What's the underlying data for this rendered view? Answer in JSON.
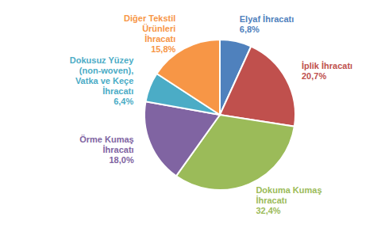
{
  "chart_data": {
    "type": "pie",
    "categories": [
      "Elyaf İhracatı",
      "İplik İhracatı",
      "Dokuma Kumaş İhracatı",
      "Örme Kumaş İhracatı",
      "Dokusuz Yüzey (non-woven), Vatka ve Keçe İhracatı",
      "Diğer Tekstil Ürünleri İhracatı"
    ],
    "values": [
      6.8,
      20.7,
      32.4,
      18.0,
      6.4,
      15.8
    ],
    "value_labels": [
      "6,8%",
      "20,7%",
      "32,4%",
      "18,0%",
      "6,4%",
      "15,8%"
    ],
    "colors": [
      "#4f81bd",
      "#c0504d",
      "#9bbb59",
      "#8064a2",
      "#4bacc6",
      "#f79646"
    ],
    "data_labels": true
  }
}
